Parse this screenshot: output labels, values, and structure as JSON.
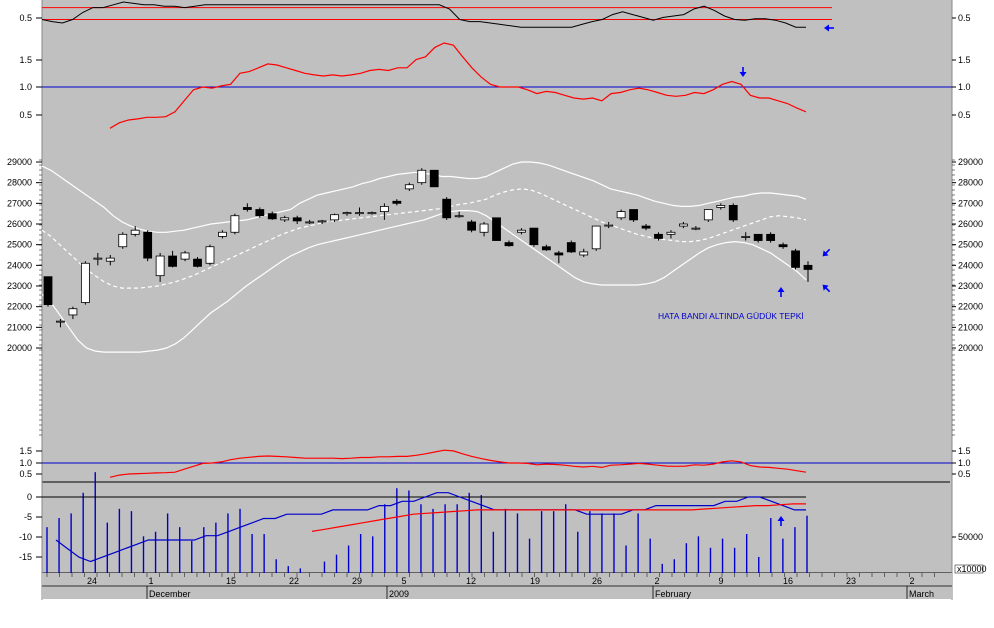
{
  "colors": {
    "background": "#c0c0c0",
    "outer_background": "#ffffff",
    "grid": "#000000",
    "candle_up": "#ffffff",
    "candle_down": "#000000",
    "band": "#ffffff",
    "red_line": "#ff0000",
    "blue_line": "#0000cc",
    "black_line": "#000000",
    "volume_bar": "#0000cc",
    "arrow": "#0000ff"
  },
  "dates": {
    "bottom": [
      "24",
      "1",
      "15",
      "22",
      "29",
      "5",
      "12",
      "19",
      "26",
      "2",
      "9",
      "16",
      "23",
      "2"
    ],
    "month": [
      "December",
      "2009",
      "February",
      "March"
    ]
  },
  "note_text": "HATA BANDI ALTINDA GÜDÜK TEPKİ",
  "volume_unit": "x10000",
  "chart_data": [
    {
      "type": "line",
      "panel": "top-oscillator",
      "y_ticks": [
        "0.5",
        "0.5"
      ],
      "reference_lines": [
        0.62,
        0.45
      ],
      "series_values": [
        0.45,
        0.42,
        0.4,
        0.45,
        0.55,
        0.62,
        0.62,
        0.66,
        0.7,
        0.68,
        0.66,
        0.66,
        0.64,
        0.64,
        0.62,
        0.64,
        0.66,
        0.66,
        0.66,
        0.66,
        0.66,
        0.66,
        0.66,
        0.66,
        0.66,
        0.66,
        0.66,
        0.66,
        0.66,
        0.66,
        0.66,
        0.66,
        0.66,
        0.66,
        0.66,
        0.66,
        0.66,
        0.66,
        0.66,
        0.66,
        0.6,
        0.45,
        0.42,
        0.42,
        0.4,
        0.38,
        0.36,
        0.34,
        0.34,
        0.34,
        0.34,
        0.34,
        0.34,
        0.38,
        0.42,
        0.45,
        0.52,
        0.56,
        0.52,
        0.48,
        0.44,
        0.48,
        0.5,
        0.52,
        0.6,
        0.64,
        0.58,
        0.5,
        0.45,
        0.44,
        0.46,
        0.46,
        0.44,
        0.4,
        0.34,
        0.34
      ]
    },
    {
      "type": "line",
      "panel": "ratio",
      "y_ticks": [
        "1.5",
        "1.0",
        "0.5"
      ],
      "reference_line": 1.0,
      "series_values": [
        0.25,
        0.35,
        0.4,
        0.42,
        0.45,
        0.45,
        0.46,
        0.55,
        0.75,
        0.95,
        1.0,
        0.98,
        1.02,
        1.05,
        1.25,
        1.28,
        1.35,
        1.42,
        1.4,
        1.35,
        1.3,
        1.25,
        1.22,
        1.2,
        1.22,
        1.2,
        1.22,
        1.25,
        1.3,
        1.32,
        1.3,
        1.35,
        1.35,
        1.5,
        1.55,
        1.72,
        1.8,
        1.76,
        1.55,
        1.35,
        1.18,
        1.05,
        1.0,
        1.0,
        1.0,
        0.95,
        0.88,
        0.92,
        0.9,
        0.85,
        0.8,
        0.78,
        0.8,
        0.75,
        0.88,
        0.9,
        0.95,
        0.98,
        0.95,
        0.9,
        0.85,
        0.83,
        0.85,
        0.9,
        0.88,
        0.95,
        1.05,
        1.1,
        1.05,
        0.85,
        0.8,
        0.8,
        0.75,
        0.7,
        0.62,
        0.55
      ]
    },
    {
      "type": "candlestick",
      "panel": "price",
      "y_ticks": [
        "29000",
        "28000",
        "27000",
        "26000",
        "25000",
        "24000",
        "23000",
        "22000",
        "21000",
        "20000"
      ],
      "candles": [
        [
          23450,
          23450,
          22000,
          22100
        ],
        [
          21300,
          21400,
          21000,
          21300
        ],
        [
          21600,
          22000,
          21400,
          21900
        ],
        [
          22200,
          24200,
          22100,
          24100
        ],
        [
          24300,
          24600,
          24000,
          24350
        ],
        [
          24200,
          24500,
          24000,
          24350
        ],
        [
          24900,
          25600,
          24800,
          25500
        ],
        [
          25500,
          25900,
          25400,
          25700
        ],
        [
          25600,
          25700,
          24200,
          24350
        ],
        [
          23500,
          24600,
          23200,
          24450
        ],
        [
          24450,
          24700,
          23900,
          23950
        ],
        [
          24300,
          24700,
          24200,
          24600
        ],
        [
          24300,
          24400,
          23900,
          23950
        ],
        [
          24100,
          25000,
          24000,
          24900
        ],
        [
          25400,
          25700,
          25300,
          25600
        ],
        [
          25600,
          26500,
          25500,
          26400
        ],
        [
          26800,
          27000,
          26600,
          26700
        ],
        [
          26700,
          26800,
          26300,
          26400
        ],
        [
          26500,
          26600,
          26200,
          26250
        ],
        [
          26200,
          26400,
          26100,
          26300
        ],
        [
          26300,
          26400,
          26000,
          26150
        ],
        [
          26100,
          26200,
          26000,
          26100
        ],
        [
          26100,
          26200,
          26000,
          26150
        ],
        [
          26200,
          26500,
          26100,
          26450
        ],
        [
          26500,
          26600,
          26400,
          26550
        ],
        [
          26500,
          26800,
          26400,
          26550
        ],
        [
          26500,
          26600,
          26450,
          26550
        ],
        [
          26600,
          27000,
          26200,
          26850
        ],
        [
          27100,
          27200,
          26900,
          27000
        ],
        [
          27700,
          28000,
          27600,
          27900
        ],
        [
          28000,
          28700,
          27900,
          28600
        ],
        [
          28600,
          28600,
          27800,
          27800
        ],
        [
          27200,
          27300,
          26200,
          26300
        ],
        [
          26400,
          26600,
          26300,
          26400
        ],
        [
          26100,
          26200,
          25600,
          25700
        ],
        [
          25600,
          26100,
          25400,
          26000
        ],
        [
          26300,
          26300,
          25200,
          25200
        ],
        [
          25100,
          25200,
          24900,
          24950
        ],
        [
          25600,
          25800,
          25500,
          25700
        ],
        [
          25800,
          25800,
          24900,
          25000
        ],
        [
          24900,
          25000,
          24700,
          24750
        ],
        [
          24600,
          24700,
          24100,
          24500
        ],
        [
          25100,
          25200,
          24600,
          24650
        ],
        [
          24500,
          24800,
          24400,
          24650
        ],
        [
          24800,
          25900,
          24700,
          25900
        ],
        [
          25900,
          26100,
          25800,
          25950
        ],
        [
          26300,
          26700,
          26200,
          26600
        ],
        [
          26700,
          26700,
          26100,
          26200
        ],
        [
          25900,
          26000,
          25700,
          25800
        ],
        [
          25500,
          25600,
          25200,
          25300
        ],
        [
          25500,
          25700,
          25300,
          25600
        ],
        [
          25900,
          26100,
          25800,
          26000
        ],
        [
          25800,
          25900,
          25700,
          25800
        ],
        [
          26200,
          26700,
          26100,
          26700
        ],
        [
          26800,
          27000,
          26700,
          26900
        ],
        [
          26900,
          27000,
          26100,
          26200
        ],
        [
          25400,
          25600,
          25200,
          25400
        ],
        [
          25500,
          25500,
          25100,
          25200
        ],
        [
          25500,
          25600,
          25100,
          25200
        ],
        [
          25000,
          25100,
          24800,
          24900
        ],
        [
          24700,
          24800,
          23800,
          23900
        ],
        [
          24000,
          24200,
          23200,
          23800
        ]
      ],
      "upper_band": [
        28800,
        28600,
        28300,
        28000,
        27700,
        27400,
        27100,
        26800,
        26400,
        26100,
        25900,
        25750,
        25650,
        25600,
        25600,
        25650,
        25700,
        25800,
        25900,
        26000,
        26050,
        26100,
        26150,
        26200,
        26300,
        26400,
        26500,
        26600,
        26700,
        27000,
        27200,
        27400,
        27500,
        27600,
        27700,
        27800,
        27950,
        28050,
        28200,
        28300,
        28400,
        28450,
        28500,
        28450,
        28400,
        28300,
        28300,
        28250,
        28200,
        28200,
        28300,
        28500,
        28700,
        28900,
        29000,
        29000,
        28950,
        28850,
        28700,
        28550,
        28400,
        28250,
        28100,
        27900,
        27700,
        27600,
        27500,
        27400,
        27250,
        27100,
        27000,
        26900,
        26850,
        26850,
        26900,
        27000,
        27100,
        27200,
        27300,
        27350,
        27450,
        27500,
        27500,
        27450,
        27400,
        27350,
        27200
      ],
      "middle_band": [
        25700,
        25400,
        25000,
        24600,
        24200,
        23800,
        23500,
        23200,
        23000,
        22900,
        22900,
        22900,
        22950,
        23000,
        23100,
        23200,
        23350,
        23500,
        23700,
        23900,
        24100,
        24300,
        24500,
        24700,
        24900,
        25100,
        25300,
        25500,
        25650,
        25800,
        25900,
        26000,
        26100,
        26150,
        26200,
        26250,
        26300,
        26350,
        26400,
        26450,
        26500,
        26550,
        26600,
        26650,
        26700,
        26750,
        26850,
        26950,
        27000,
        27100,
        27200,
        27400,
        27550,
        27650,
        27700,
        27650,
        27500,
        27300,
        27100,
        26900,
        26700,
        26500,
        26300,
        26100,
        25950,
        25800,
        25650,
        25500,
        25400,
        25300,
        25250,
        25200,
        25150,
        25150,
        25200,
        25300,
        25450,
        25600,
        25750,
        25900,
        26050,
        26200,
        26350,
        26400,
        26350,
        26300,
        26200
      ],
      "lower_band": [
        22600,
        22200,
        21600,
        21000,
        20400,
        20000,
        19850,
        19800,
        19800,
        19800,
        19800,
        19800,
        19850,
        19900,
        20000,
        20200,
        20500,
        20900,
        21300,
        21700,
        22000,
        22300,
        22650,
        23000,
        23300,
        23600,
        23900,
        24200,
        24450,
        24650,
        24850,
        25000,
        25100,
        25200,
        25300,
        25400,
        25500,
        25600,
        25700,
        25800,
        25900,
        26000,
        26100,
        26200,
        26350,
        26500,
        26600,
        26650,
        26650,
        26600,
        26400,
        26100,
        25800,
        25500,
        25200,
        24900,
        24600,
        24300,
        24000,
        23700,
        23400,
        23200,
        23100,
        23050,
        23050,
        23050,
        23050,
        23050,
        23100,
        23200,
        23400,
        23700,
        24000,
        24300,
        24600,
        24850,
        25000,
        25100,
        25150,
        25100,
        25000,
        24800,
        24600,
        24300,
        24000,
        23700,
        23300
      ]
    },
    {
      "type": "line",
      "panel": "middle-ratio",
      "y_ticks": [
        "1.5",
        "1.0",
        "0.5"
      ],
      "reference_line": 1.0,
      "series_values": [
        0.35,
        0.45,
        0.5,
        0.52,
        0.53,
        0.55,
        0.56,
        0.58,
        0.72,
        0.85,
        0.98,
        1.0,
        1.05,
        1.15,
        1.22,
        1.26,
        1.3,
        1.32,
        1.3,
        1.28,
        1.25,
        1.22,
        1.22,
        1.22,
        1.22,
        1.2,
        1.22,
        1.25,
        1.25,
        1.28,
        1.28,
        1.3,
        1.3,
        1.35,
        1.42,
        1.5,
        1.58,
        1.55,
        1.42,
        1.3,
        1.2,
        1.12,
        1.05,
        1.0,
        1.0,
        0.98,
        0.92,
        0.95,
        0.93,
        0.9,
        0.85,
        0.82,
        0.85,
        0.8,
        0.9,
        0.92,
        0.95,
        0.98,
        0.95,
        0.9,
        0.86,
        0.85,
        0.86,
        0.92,
        0.9,
        0.95,
        1.05,
        1.1,
        1.05,
        0.88,
        0.82,
        0.8,
        0.76,
        0.72,
        0.65,
        0.58
      ]
    },
    {
      "type": "bar",
      "panel": "volume",
      "y_ticks_left": [
        "0",
        "-5",
        "-10",
        "-15"
      ],
      "y_ticks_right": [
        "50000"
      ],
      "values": [
        60000,
        64000,
        66000,
        75000,
        84000,
        62000,
        68000,
        67000,
        56000,
        58000,
        66000,
        60000,
        54000,
        60000,
        62000,
        66000,
        68000,
        57000,
        57000,
        46000,
        43000,
        42000,
        40000,
        45000,
        48000,
        52000,
        57000,
        56000,
        70000,
        77000,
        76000,
        70000,
        68000,
        70000,
        70000,
        75000,
        74000,
        58000,
        68000,
        66000,
        55000,
        67000,
        67000,
        70000,
        58000,
        67000,
        66000,
        66000,
        52000,
        66000,
        55000,
        44000,
        46000,
        53000,
        56000,
        51000,
        55000,
        51000,
        57000,
        47000,
        64000,
        55000,
        60000,
        65000
      ],
      "blue_line": [
        -10,
        -12,
        -14,
        -15,
        -14,
        -13,
        -12,
        -11,
        -10,
        -10,
        -10,
        -10,
        -10,
        -9,
        -9,
        -8,
        -7,
        -6,
        -5,
        -5,
        -4,
        -4,
        -4,
        -4,
        -3,
        -3,
        -3,
        -3,
        -2,
        -2,
        -1,
        -1,
        0,
        1,
        1,
        0,
        -1,
        -2,
        -3,
        -3,
        -3,
        -3,
        -3,
        -3,
        -3,
        -3,
        -4,
        -4,
        -4,
        -4,
        -3,
        -3,
        -2,
        -2,
        -2,
        -2,
        -2,
        -2,
        -1,
        -1,
        0,
        0,
        -1,
        -2,
        -3,
        -3
      ],
      "red_line": [
        -8,
        -7.5,
        -7,
        -6.5,
        -6,
        -5.5,
        -5,
        -4.5,
        -4,
        -3.8,
        -3.6,
        -3.4,
        -3.2,
        -3,
        -3,
        -3,
        -3,
        -3,
        -3,
        -3,
        -3,
        -3,
        -3,
        -3,
        -3,
        -3,
        -3,
        -3,
        -3,
        -3,
        -3,
        -2.8,
        -2.6,
        -2.4,
        -2.2,
        -2,
        -2,
        -1.8,
        -1.6,
        -1.6
      ]
    }
  ]
}
